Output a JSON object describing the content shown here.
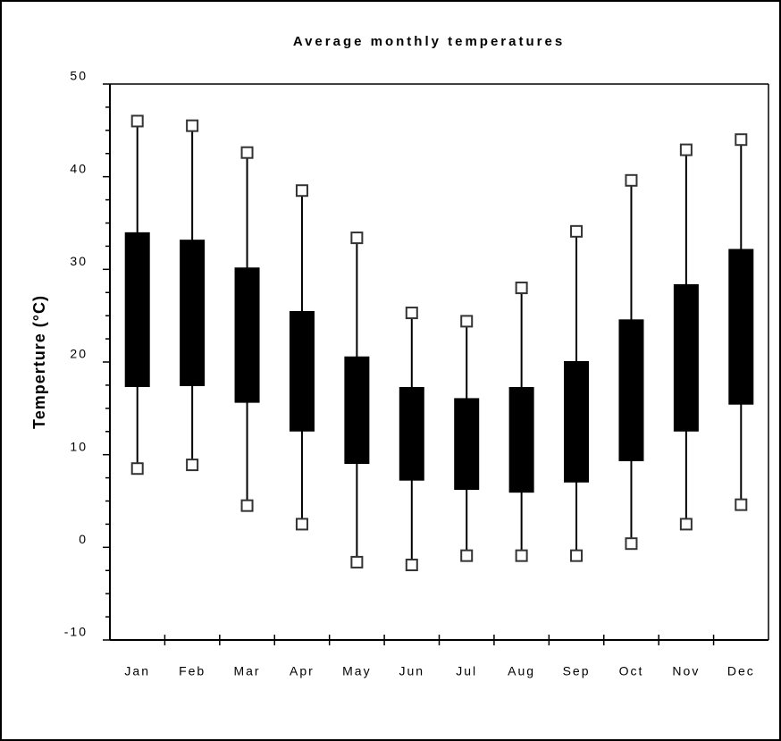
{
  "chart_data": {
    "type": "box",
    "title": "Average monthly temperatures",
    "y_label": "Temperture (°C)",
    "categories": [
      "Jan",
      "Feb",
      "Mar",
      "Apr",
      "May",
      "Jun",
      "Jul",
      "Aug",
      "Sep",
      "Oct",
      "Nov",
      "Dec"
    ],
    "high": [
      46,
      45.5,
      42.6,
      38.5,
      33.4,
      25.3,
      24.4,
      28,
      34.1,
      39.6,
      42.9,
      44
    ],
    "box_top": [
      34,
      33.2,
      30.2,
      25.5,
      20.6,
      17.3,
      16.1,
      17.3,
      20.1,
      24.6,
      28.4,
      32.2
    ],
    "box_bottom": [
      17.3,
      17.4,
      15.6,
      12.5,
      9,
      7.2,
      6.2,
      5.9,
      7,
      9.3,
      12.5,
      15.4
    ],
    "low": [
      8.5,
      8.9,
      4.5,
      2.5,
      -1.6,
      -1.9,
      -0.9,
      -0.9,
      -0.9,
      0.4,
      2.5,
      4.6
    ],
    "box_color": "#000000",
    "marker_fill": "#ffffff",
    "marker_stroke": "#333333",
    "ylim": [
      -10,
      50
    ],
    "yticks": [
      -10,
      0,
      10,
      20,
      30,
      40,
      50
    ],
    "minor_yticks": [
      -7.5,
      -5,
      -2.5,
      2.5,
      5,
      7.5,
      12.5,
      15,
      17.5,
      22.5,
      25,
      27.5,
      32.5,
      35,
      37.5,
      42.5,
      45,
      47.5
    ]
  }
}
